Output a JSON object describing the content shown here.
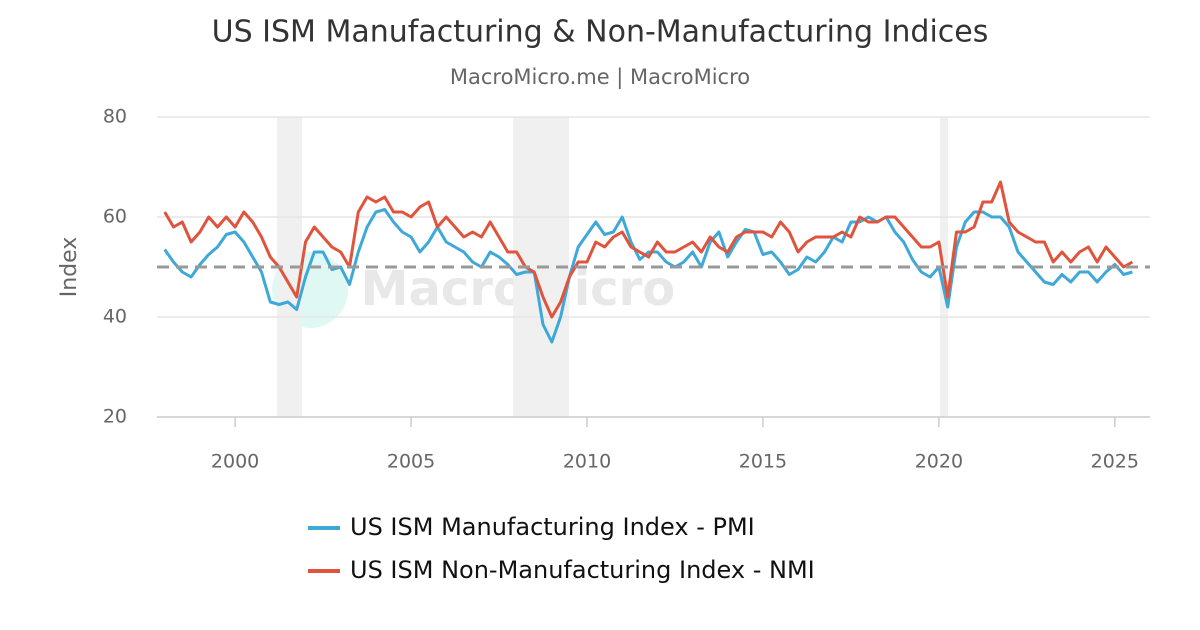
{
  "chart_data": {
    "type": "line",
    "title": "US ISM Manufacturing & Non-Manufacturing Indices",
    "subtitle": "MacroMicro.me | MacroMicro",
    "watermark": "MacroMicro",
    "y_label": "Index",
    "xlim": [
      1997.78,
      2026.0
    ],
    "xticks": [
      2000,
      2005,
      2010,
      2015,
      2020,
      2025
    ],
    "ylim": [
      20,
      80
    ],
    "yticks": [
      20,
      40,
      60,
      80
    ],
    "grid": true,
    "reference_line": 50,
    "shaded_periods": [
      [
        2001.19,
        2001.9
      ],
      [
        2007.9,
        2009.49
      ],
      [
        2020.03,
        2020.26
      ]
    ],
    "x": [
      1998.0,
      1998.25,
      1998.5,
      1998.75,
      1999.0,
      1999.25,
      1999.5,
      1999.75,
      2000.0,
      2000.25,
      2000.5,
      2000.75,
      2001.0,
      2001.25,
      2001.5,
      2001.75,
      2002.0,
      2002.25,
      2002.5,
      2002.75,
      2003.0,
      2003.25,
      2003.5,
      2003.75,
      2004.0,
      2004.25,
      2004.5,
      2004.75,
      2005.0,
      2005.25,
      2005.5,
      2005.75,
      2006.0,
      2006.25,
      2006.5,
      2006.75,
      2007.0,
      2007.25,
      2007.5,
      2007.75,
      2008.0,
      2008.25,
      2008.5,
      2008.75,
      2009.0,
      2009.25,
      2009.5,
      2009.75,
      2010.0,
      2010.25,
      2010.5,
      2010.75,
      2011.0,
      2011.25,
      2011.5,
      2011.75,
      2012.0,
      2012.25,
      2012.5,
      2012.75,
      2013.0,
      2013.25,
      2013.5,
      2013.75,
      2014.0,
      2014.25,
      2014.5,
      2014.75,
      2015.0,
      2015.25,
      2015.5,
      2015.75,
      2016.0,
      2016.25,
      2016.5,
      2016.75,
      2017.0,
      2017.25,
      2017.5,
      2017.75,
      2018.0,
      2018.25,
      2018.5,
      2018.75,
      2019.0,
      2019.25,
      2019.5,
      2019.75,
      2020.0,
      2020.25,
      2020.5,
      2020.75,
      2021.0,
      2021.25,
      2021.5,
      2021.75,
      2022.0,
      2022.25,
      2022.5,
      2022.75,
      2023.0,
      2023.25,
      2023.5,
      2023.75,
      2024.0,
      2024.25,
      2024.5,
      2024.75,
      2025.0,
      2025.25,
      2025.5
    ],
    "series": [
      {
        "name": "US ISM Manufacturing Index - PMI",
        "color": "#3ea8d8",
        "values": [
          53.5,
          51,
          49,
          48,
          50.5,
          52.5,
          54,
          56.5,
          57,
          55,
          52,
          49,
          43,
          42.5,
          43,
          41.5,
          48,
          53,
          53,
          49.5,
          50,
          46.5,
          53,
          58,
          61,
          61.5,
          59,
          57,
          56,
          53,
          55,
          58,
          55,
          54,
          53,
          51,
          50,
          53,
          52,
          50.5,
          48.5,
          49,
          49,
          38.5,
          35,
          40,
          48,
          54,
          56.5,
          59,
          56.5,
          57,
          60,
          55,
          51.5,
          53,
          53,
          51,
          50,
          51,
          53,
          50,
          55,
          57,
          52,
          55,
          57.5,
          57,
          52.5,
          53,
          51,
          48.5,
          49.5,
          52,
          51,
          53,
          56,
          55,
          59,
          59,
          60,
          59,
          60,
          57,
          55,
          51.5,
          49,
          48,
          50,
          42,
          54,
          59,
          61,
          61,
          60,
          60,
          58,
          53,
          51,
          49,
          47,
          46.5,
          48.5,
          47,
          49,
          49,
          47,
          49,
          50.5,
          48.5,
          49
        ]
      },
      {
        "name": "US ISM Non-Manufacturing Index - NMI",
        "color": "#e0533c",
        "values": [
          61,
          58,
          59,
          55,
          57,
          60,
          58,
          60,
          58,
          61,
          59,
          56,
          52,
          50,
          47,
          44,
          55,
          58,
          56,
          54,
          53,
          50,
          61,
          64,
          63,
          64,
          61,
          61,
          60,
          62,
          63,
          58,
          60,
          58,
          56,
          57,
          56,
          59,
          56,
          53,
          53,
          50,
          49,
          44,
          40,
          43,
          48,
          51,
          51,
          55,
          54,
          56,
          57,
          54,
          53,
          52,
          55,
          53,
          53,
          54,
          55,
          53,
          56,
          54,
          53,
          56,
          57,
          57,
          57,
          56,
          59,
          57,
          53,
          55,
          56,
          56,
          56,
          57,
          56,
          60,
          59,
          59,
          60,
          60,
          58,
          56,
          54,
          54,
          55,
          44,
          57,
          57,
          58,
          63,
          63,
          67,
          59,
          57,
          56,
          55,
          55,
          51,
          53,
          51,
          53,
          54,
          51,
          54,
          52,
          50,
          51
        ]
      }
    ]
  }
}
